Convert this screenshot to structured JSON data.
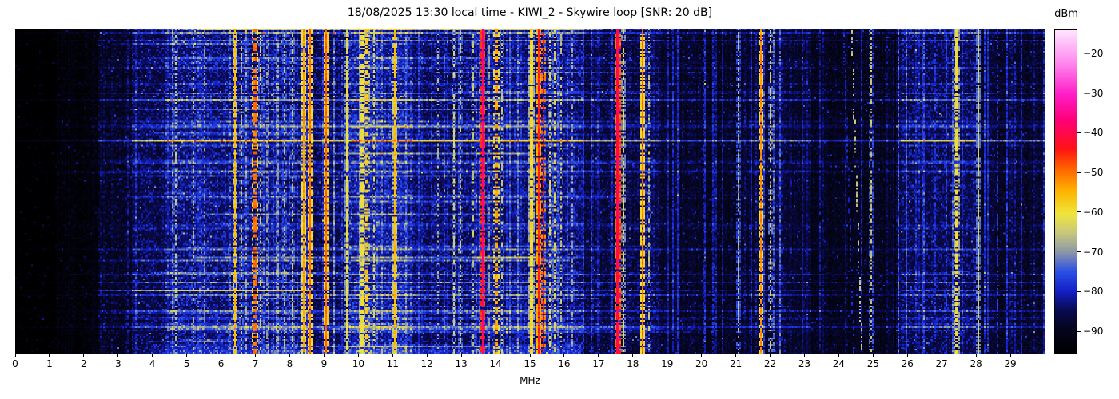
{
  "chart_data": {
    "type": "heatmap",
    "title": "18/08/2025 13:30 local time - KIWI_2 - Skywire loop [SNR: 20 dB]",
    "xlabel": "MHz",
    "x_range": [
      0,
      30
    ],
    "x_ticks": [
      0,
      1,
      2,
      3,
      4,
      5,
      6,
      7,
      8,
      9,
      10,
      11,
      12,
      13,
      14,
      15,
      16,
      17,
      18,
      19,
      20,
      21,
      22,
      23,
      24,
      25,
      26,
      27,
      28,
      29
    ],
    "y_axis": "time (waterfall, no tick labels)",
    "colorbar": {
      "label": "dBm",
      "vmin": -95.4,
      "vmax": -14,
      "ticks": [
        -20,
        -30,
        -40,
        -50,
        -60,
        -70,
        -80,
        -90
      ]
    },
    "colormap_stops": [
      [
        0.0,
        "#000000"
      ],
      [
        0.07,
        "#05051e"
      ],
      [
        0.13,
        "#0a0a50"
      ],
      [
        0.19,
        "#1420c8"
      ],
      [
        0.25,
        "#2a50e6"
      ],
      [
        0.31,
        "#8c96aa"
      ],
      [
        0.37,
        "#c8c87d"
      ],
      [
        0.43,
        "#f0e63c"
      ],
      [
        0.5,
        "#ffb400"
      ],
      [
        0.57,
        "#ff6400"
      ],
      [
        0.63,
        "#ff1414"
      ],
      [
        0.72,
        "#ff0078"
      ],
      [
        0.8,
        "#ff1ec8"
      ],
      [
        0.9,
        "#ff8cf0"
      ],
      [
        1.0,
        "#ffe6ff"
      ]
    ],
    "noise_regions": [
      [
        0.0,
        1.2,
        -97.0,
        1.0
      ],
      [
        1.2,
        2.4,
        -94.5,
        1.5
      ],
      [
        2.4,
        3.4,
        -91.0,
        2.5
      ],
      [
        3.4,
        4.4,
        -88.0,
        3.0
      ],
      [
        4.4,
        8.6,
        -85.5,
        3.5
      ],
      [
        8.6,
        9.8,
        -87.5,
        3.0
      ],
      [
        9.8,
        11.6,
        -84.0,
        3.5
      ],
      [
        11.6,
        13.4,
        -86.5,
        3.0
      ],
      [
        13.4,
        16.6,
        -85.5,
        3.0
      ],
      [
        16.6,
        18.8,
        -88.5,
        2.5
      ],
      [
        18.8,
        21.4,
        -90.5,
        2.0
      ],
      [
        21.4,
        23.2,
        -89.5,
        2.0
      ],
      [
        23.2,
        25.8,
        -91.5,
        1.8
      ],
      [
        25.8,
        28.0,
        -87.0,
        3.0
      ],
      [
        28.0,
        30.0,
        -90.0,
        2.0
      ]
    ],
    "signals": [
      [
        4.66,
        -66,
        0.05,
        0.5
      ],
      [
        5.18,
        -67,
        0.05,
        0.45
      ],
      [
        5.52,
        -71,
        0.05,
        0.5
      ],
      [
        6.36,
        -56,
        0.05,
        0.9
      ],
      [
        6.55,
        -66,
        0.05,
        0.5
      ],
      [
        6.72,
        -68,
        0.05,
        0.4
      ],
      [
        6.98,
        -50,
        0.07,
        0.55
      ],
      [
        7.12,
        -64,
        0.05,
        0.5
      ],
      [
        7.3,
        -70,
        0.05,
        0.5
      ],
      [
        7.62,
        -68,
        0.05,
        0.35
      ],
      [
        7.82,
        -66,
        0.05,
        0.45
      ],
      [
        8.05,
        -65,
        0.05,
        0.5
      ],
      [
        8.4,
        -53,
        0.06,
        0.95
      ],
      [
        8.56,
        -50,
        0.06,
        0.97
      ],
      [
        9.04,
        -49,
        0.06,
        0.97
      ],
      [
        9.64,
        -62,
        0.05,
        0.95
      ],
      [
        10.12,
        -61,
        0.08,
        0.7
      ],
      [
        10.26,
        -57,
        0.07,
        0.6
      ],
      [
        10.42,
        -63,
        0.06,
        0.55
      ],
      [
        11.02,
        -56,
        0.05,
        0.9
      ],
      [
        11.4,
        -78,
        0.05,
        0.6
      ],
      [
        12.32,
        -67,
        0.05,
        0.4
      ],
      [
        12.75,
        -64,
        0.05,
        0.55
      ],
      [
        12.95,
        -65,
        0.05,
        0.5
      ],
      [
        13.32,
        -66,
        0.05,
        0.45
      ],
      [
        13.58,
        -37,
        0.06,
        0.97
      ],
      [
        13.78,
        -70,
        0.05,
        0.5
      ],
      [
        14.02,
        -54,
        0.07,
        0.55
      ],
      [
        14.18,
        -65,
        0.05,
        0.45
      ],
      [
        15.04,
        -59,
        0.07,
        0.95
      ],
      [
        15.22,
        -45,
        0.06,
        0.95
      ],
      [
        15.36,
        -42,
        0.06,
        0.5
      ],
      [
        15.56,
        -63,
        0.05,
        0.55
      ],
      [
        15.72,
        -64,
        0.05,
        0.5
      ],
      [
        15.88,
        -66,
        0.05,
        0.45
      ],
      [
        16.2,
        -69,
        0.05,
        0.5
      ],
      [
        16.55,
        -78,
        0.05,
        0.6
      ],
      [
        17.55,
        -41,
        0.1,
        0.98
      ],
      [
        17.55,
        -36,
        0.04,
        0.45
      ],
      [
        17.68,
        -62,
        0.05,
        0.7
      ],
      [
        18.26,
        -50,
        0.06,
        0.95
      ],
      [
        18.47,
        -66,
        0.05,
        0.45
      ],
      [
        19.3,
        -79,
        0.05,
        0.6
      ],
      [
        20.05,
        -80,
        0.05,
        0.5
      ],
      [
        21.06,
        -67,
        0.05,
        0.7
      ],
      [
        21.73,
        -52,
        0.05,
        0.9
      ],
      [
        21.97,
        -64,
        0.05,
        0.5
      ],
      [
        22.25,
        -72,
        0.05,
        0.4
      ],
      [
        24.92,
        -66,
        0.05,
        0.5
      ],
      [
        26.4,
        -77,
        0.05,
        0.7
      ],
      [
        26.78,
        -78,
        0.05,
        0.6
      ],
      [
        27.12,
        -77,
        0.05,
        0.6
      ],
      [
        27.46,
        -60,
        0.07,
        0.75
      ],
      [
        28.06,
        -64,
        0.05,
        0.9
      ],
      [
        28.62,
        -78,
        0.05,
        0.5
      ],
      [
        29.32,
        -80,
        0.05,
        0.5
      ]
    ],
    "drift_signals": [
      [
        24.35,
        0.3,
        -66,
        0.45
      ],
      [
        24.12,
        0.3,
        -79,
        0.4
      ]
    ],
    "render_params": {
      "seed": 1337,
      "cols": 644,
      "rows": 204,
      "h_streaks": 90,
      "v_lines": 120,
      "speckle_prob": 0.02,
      "bottom_boost_mhz": [
        4.0,
        16.5
      ]
    }
  }
}
